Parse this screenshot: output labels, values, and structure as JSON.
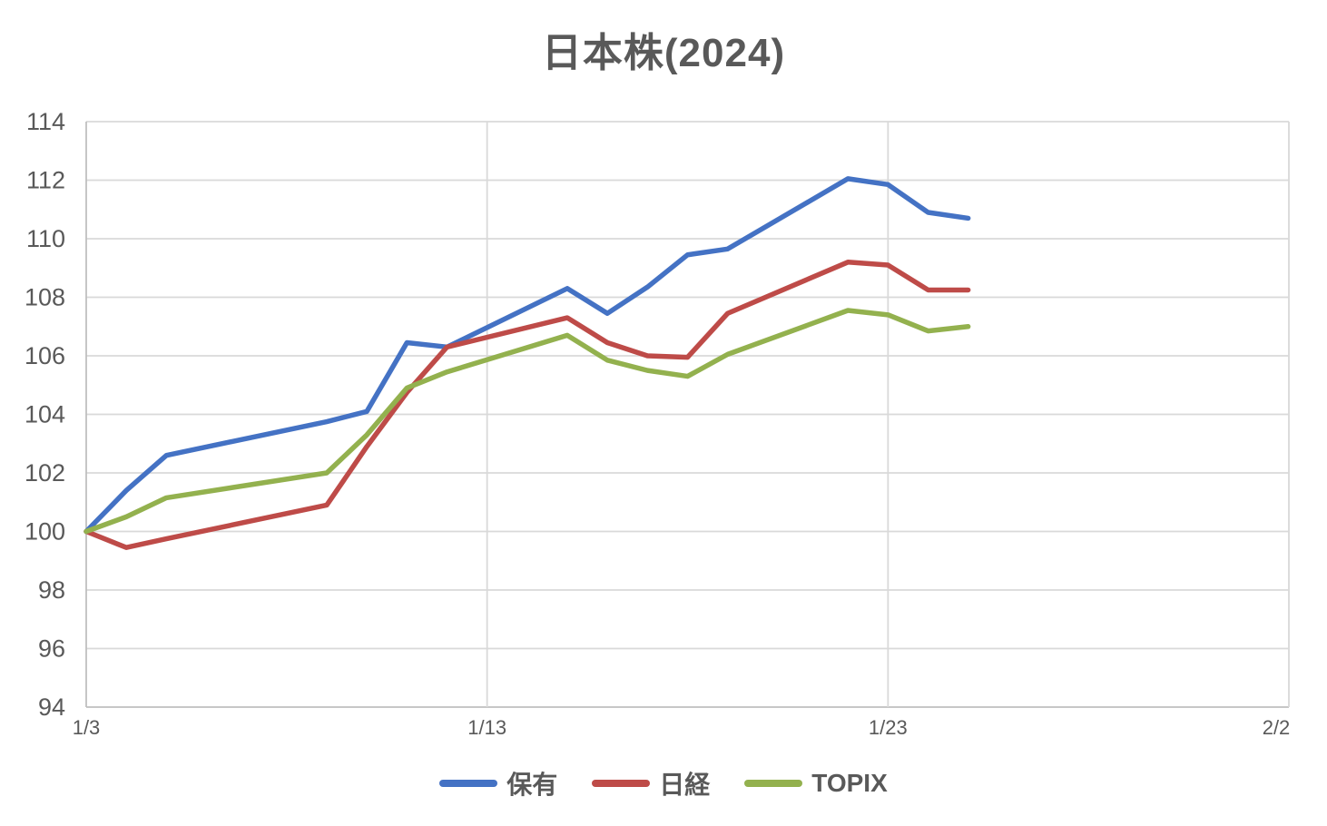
{
  "chart": {
    "title": "日本株(2024)"
  },
  "chart_data": {
    "type": "line",
    "title": "日本株(2024)",
    "grid": true,
    "legend_position": "bottom",
    "x_axis": {
      "tick_labels": [
        "1/3",
        "1/13",
        "1/23",
        "2/2"
      ],
      "tick_day_offsets": [
        0,
        10,
        20,
        30
      ],
      "range_days": [
        0,
        30
      ]
    },
    "y_axis": {
      "ticks": [
        94,
        96,
        98,
        100,
        102,
        104,
        106,
        108,
        110,
        112,
        114
      ],
      "range": [
        94,
        114
      ]
    },
    "categories": [
      "1/3",
      "1/4",
      "1/5",
      "1/9",
      "1/10",
      "1/11",
      "1/12",
      "1/15",
      "1/16",
      "1/17",
      "1/18",
      "1/19",
      "1/22",
      "1/23",
      "1/24",
      "1/25"
    ],
    "day_offsets": [
      0,
      1,
      2,
      6,
      7,
      8,
      9,
      12,
      13,
      14,
      15,
      16,
      19,
      20,
      21,
      22
    ],
    "series": [
      {
        "name": "保有",
        "color": "#4472C4",
        "values": [
          100,
          101.4,
          102.6,
          103.75,
          104.1,
          106.45,
          106.3,
          108.3,
          107.45,
          108.35,
          109.45,
          109.65,
          112.05,
          111.85,
          110.9,
          110.7
        ]
      },
      {
        "name": "日経",
        "color": "#BE4B48",
        "values": [
          100,
          99.45,
          99.75,
          100.9,
          102.9,
          104.75,
          106.3,
          107.3,
          106.45,
          106.0,
          105.95,
          107.45,
          109.2,
          109.1,
          108.25,
          108.25
        ]
      },
      {
        "name": "TOPIX",
        "color": "#93B14E",
        "values": [
          100,
          100.5,
          101.15,
          102.0,
          103.3,
          104.9,
          105.45,
          106.7,
          105.85,
          105.5,
          105.3,
          106.05,
          107.55,
          107.4,
          106.85,
          107.0
        ]
      }
    ]
  },
  "legend": {
    "items": [
      {
        "label": "保有",
        "color": "#4472C4"
      },
      {
        "label": "日経",
        "color": "#BE4B48"
      },
      {
        "label": "TOPIX",
        "color": "#93B14E"
      }
    ]
  },
  "colors": {
    "grid": "#D9D9D9",
    "axis": "#BFBFBF",
    "text": "#595959"
  }
}
